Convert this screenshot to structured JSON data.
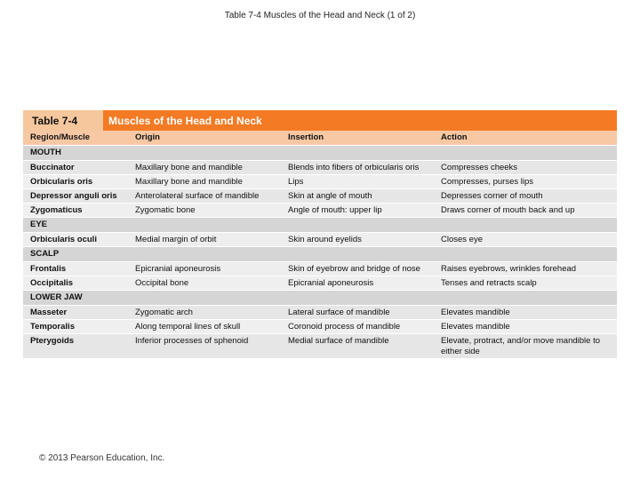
{
  "page": {
    "title": "Table 7-4 Muscles of the Head and Neck (1 of 2)",
    "footer": "© 2013 Pearson Education, Inc."
  },
  "table": {
    "tag": "Table 7-4",
    "title": "Muscles of the Head and Neck",
    "headers": [
      "Region/Muscle",
      "Origin",
      "Insertion",
      "Action"
    ],
    "sections": [
      {
        "name": "MOUTH",
        "rows": [
          [
            "Buccinator",
            "Maxillary bone and mandible",
            "Blends into fibers of orbicularis oris",
            "Compresses cheeks"
          ],
          [
            "Orbicularis oris",
            "Maxillary bone and mandible",
            "Lips",
            "Compresses, purses lips"
          ],
          [
            "Depressor anguli oris",
            "Anterolateral surface of mandible",
            "Skin at angle of mouth",
            "Depresses corner of mouth"
          ],
          [
            "Zygomaticus",
            "Zygomatic bone",
            "Angle of mouth: upper lip",
            "Draws corner of mouth back and up"
          ]
        ]
      },
      {
        "name": "EYE",
        "rows": [
          [
            "Orbicularis oculi",
            "Medial margin of orbit",
            "Skin around eyelids",
            "Closes eye"
          ]
        ]
      },
      {
        "name": "SCALP",
        "rows": [
          [
            "Frontalis",
            "Epicranial aponeurosis",
            "Skin of eyebrow and bridge of nose",
            "Raises eyebrows, wrinkles forehead"
          ],
          [
            "Occipitalis",
            "Occipital bone",
            "Epicranial aponeurosis",
            "Tenses and retracts scalp"
          ]
        ]
      },
      {
        "name": "LOWER JAW",
        "rows": [
          [
            "Masseter",
            "Zygomatic arch",
            "Lateral surface of mandible",
            "Elevates mandible"
          ],
          [
            "Temporalis",
            "Along temporal lines of skull",
            "Coronoid process of mandible",
            "Elevates mandible"
          ],
          [
            "Pterygoids",
            "Inferior processes of sphenoid",
            "Medial surface of mandible",
            "Elevate, protract, and/or move mandible to either side"
          ]
        ]
      }
    ]
  }
}
